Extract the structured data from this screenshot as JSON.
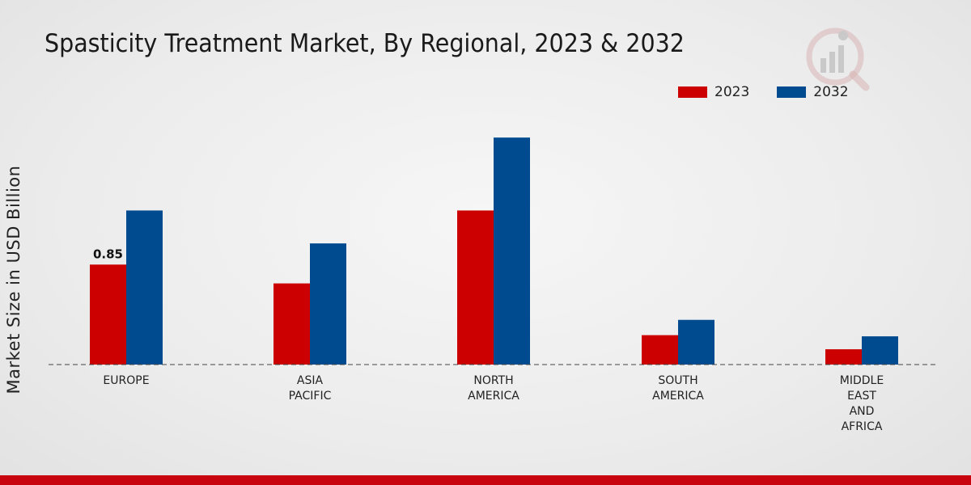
{
  "colors": {
    "series_2023": "#cc0000",
    "series_2032": "#004a8f",
    "bottom_bar": "#c8050f"
  },
  "logo": {
    "icon": "market-research-logo-icon"
  },
  "chart_data": {
    "type": "bar",
    "title": "Spasticity Treatment Market, By Regional, 2023 & 2032",
    "xlabel": "",
    "ylabel": "Market Size in USD Billion",
    "ylim": [
      0,
      2.0
    ],
    "grid": false,
    "legend_position": "top-right",
    "categories": [
      [
        "EUROPE"
      ],
      [
        "ASIA",
        "PACIFIC"
      ],
      [
        "NORTH",
        "AMERICA"
      ],
      [
        "SOUTH",
        "AMERICA"
      ],
      [
        "MIDDLE",
        "EAST",
        "AND",
        "AFRICA"
      ]
    ],
    "series": [
      {
        "name": "2023",
        "values": [
          0.85,
          0.69,
          1.31,
          0.25,
          0.13
        ]
      },
      {
        "name": "2032",
        "values": [
          1.31,
          1.03,
          1.93,
          0.38,
          0.24
        ]
      }
    ],
    "annotations": [
      {
        "series": "2023",
        "category_index": 0,
        "text": "0.85"
      }
    ]
  }
}
